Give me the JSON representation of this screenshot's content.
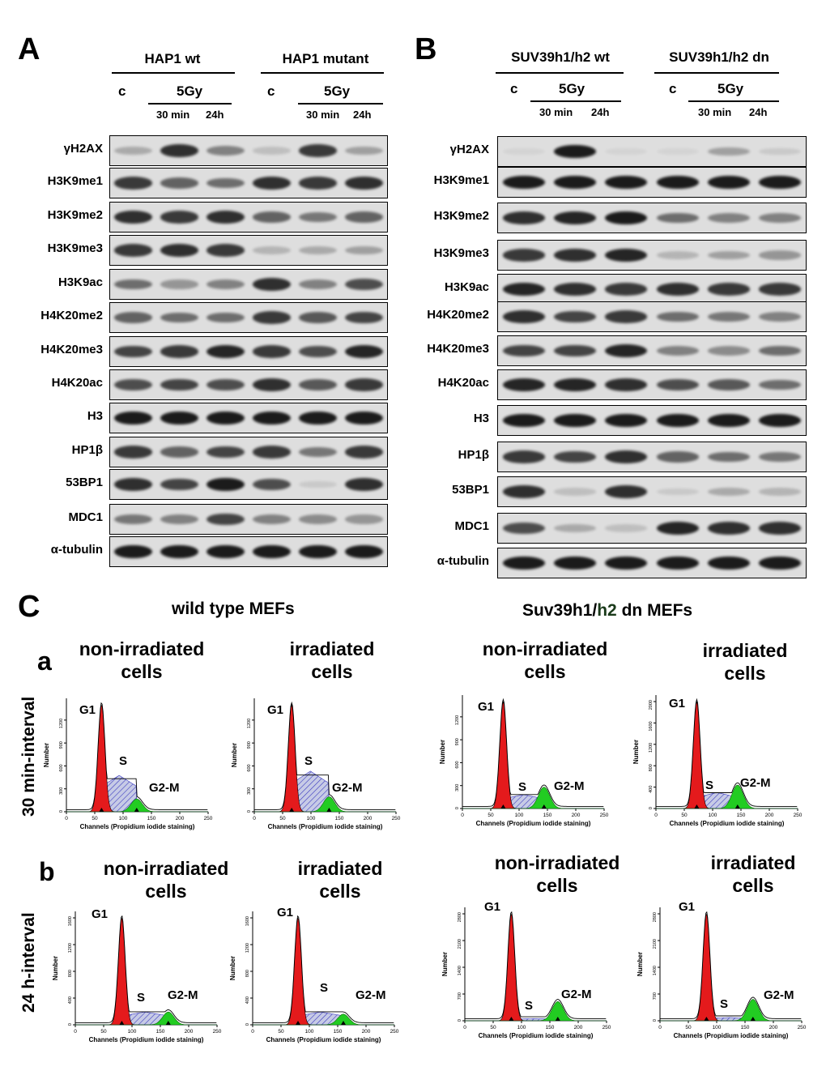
{
  "panelA": {
    "letter": "A",
    "group1": "HAP1 wt",
    "group2": "HAP1 mutant",
    "control": "c",
    "dose": "5Gy",
    "t1": "30 min",
    "t2": "24h",
    "rows": [
      "γH2AX",
      "H3K9me1",
      "H3K9me2",
      "H3K9me3",
      "H3K9ac",
      "H4K20me2",
      "H4K20me3",
      "H4K20ac",
      "H3",
      "HP1β",
      "53BP1",
      "MDC1",
      "α-tubulin"
    ],
    "intensities": [
      [
        0.25,
        0.85,
        0.45,
        0.15,
        0.8,
        0.3
      ],
      [
        0.8,
        0.6,
        0.55,
        0.85,
        0.8,
        0.85
      ],
      [
        0.85,
        0.8,
        0.85,
        0.6,
        0.5,
        0.6
      ],
      [
        0.8,
        0.85,
        0.8,
        0.2,
        0.25,
        0.3
      ],
      [
        0.55,
        0.35,
        0.45,
        0.85,
        0.45,
        0.7
      ],
      [
        0.6,
        0.55,
        0.55,
        0.8,
        0.65,
        0.75
      ],
      [
        0.75,
        0.8,
        0.9,
        0.8,
        0.7,
        0.9
      ],
      [
        0.7,
        0.75,
        0.7,
        0.85,
        0.65,
        0.8
      ],
      [
        0.95,
        0.95,
        0.95,
        0.95,
        0.95,
        0.95
      ],
      [
        0.8,
        0.6,
        0.75,
        0.8,
        0.5,
        0.8
      ],
      [
        0.85,
        0.75,
        0.95,
        0.7,
        0.1,
        0.85
      ],
      [
        0.5,
        0.45,
        0.75,
        0.45,
        0.4,
        0.35
      ],
      [
        0.95,
        0.95,
        0.95,
        0.95,
        0.95,
        0.95
      ]
    ]
  },
  "panelB": {
    "letter": "B",
    "group1": "SUV39h1/h2 wt",
    "group2": "SUV39h1/h2 dn",
    "control": "c",
    "dose": "5Gy",
    "t1": "30 min",
    "t2": "24h",
    "rows": [
      "γH2AX",
      "H3K9me1",
      "H3K9me2",
      "H3K9me3",
      "H3K9ac",
      "H4K20me2",
      "H4K20me3",
      "H4K20ac",
      "H3",
      "HP1β",
      "53BP1",
      "MDC1",
      "α-tubulin"
    ],
    "intensities": [
      [
        0.05,
        0.95,
        0.05,
        0.03,
        0.3,
        0.1
      ],
      [
        0.95,
        0.95,
        0.95,
        0.95,
        0.95,
        0.95
      ],
      [
        0.85,
        0.9,
        0.95,
        0.55,
        0.45,
        0.45
      ],
      [
        0.8,
        0.85,
        0.9,
        0.2,
        0.3,
        0.35
      ],
      [
        0.9,
        0.85,
        0.8,
        0.85,
        0.8,
        0.8
      ],
      [
        0.85,
        0.75,
        0.8,
        0.55,
        0.5,
        0.45
      ],
      [
        0.75,
        0.75,
        0.9,
        0.45,
        0.4,
        0.55
      ],
      [
        0.9,
        0.9,
        0.85,
        0.7,
        0.65,
        0.55
      ],
      [
        0.95,
        0.95,
        0.95,
        0.95,
        0.95,
        0.95
      ],
      [
        0.8,
        0.75,
        0.85,
        0.6,
        0.55,
        0.5
      ],
      [
        0.85,
        0.15,
        0.85,
        0.1,
        0.25,
        0.2
      ],
      [
        0.7,
        0.25,
        0.15,
        0.9,
        0.85,
        0.85
      ],
      [
        0.95,
        0.95,
        0.95,
        0.95,
        0.95,
        0.95
      ]
    ]
  },
  "panelC": {
    "letter": "C",
    "title_left": "wild type MEFs",
    "title_right_a": "Suv39h1",
    "title_right_sep": "/",
    "title_right_b": "h2",
    "title_right_c": " dn MEFs",
    "row_a_letter": "a",
    "row_b_letter": "b",
    "row_a_label": "30 min-interval",
    "row_b_label": "24 h-interval",
    "non_irr_1": "non-irradiated",
    "non_irr_2": "cells",
    "irr_1": "irradiated",
    "irr_2": "cells",
    "phase_g1": "G1",
    "phase_s": "S",
    "phase_g2m": "G2-M",
    "y_label": "Number",
    "x_label": "Channels (Propidium iodide staining)",
    "x_ticks": [
      "0",
      "50",
      "100",
      "150",
      "200",
      "250"
    ]
  },
  "colors": {
    "g1": "#e41a1c",
    "s_fill": "#c7cbe6",
    "s_hatch": "#3a3ac0",
    "g2m": "#22cc22",
    "band": "#111111",
    "blot_bg": "#dedede"
  },
  "chart_data": [
    {
      "type": "area",
      "panel": "C.a wild type non-irradiated",
      "g1_peak": 62,
      "s_level": 0.34,
      "g2m_peak": 0.12,
      "ylim": [
        0,
        1400
      ]
    },
    {
      "type": "area",
      "panel": "C.a wild type irradiated",
      "g1_peak": 66,
      "s_level": 0.38,
      "g2m_peak": 0.14,
      "ylim": [
        0,
        1400
      ]
    },
    {
      "type": "area",
      "panel": "C.a Suv39h1/h2 dn non-irradiated",
      "g1_peak": 72,
      "s_level": 0.13,
      "g2m_peak": 0.2,
      "ylim": [
        0,
        1400
      ]
    },
    {
      "type": "area",
      "panel": "C.a Suv39h1/h2 dn irradiated",
      "g1_peak": 72,
      "s_level": 0.15,
      "g2m_peak": 0.22,
      "ylim": [
        0,
        2000
      ]
    },
    {
      "type": "area",
      "panel": "C.b wild type non-irradiated",
      "g1_peak": 82,
      "s_level": 0.12,
      "g2m_peak": 0.12,
      "ylim": [
        0,
        1600
      ]
    },
    {
      "type": "area",
      "panel": "C.b wild type irradiated",
      "g1_peak": 80,
      "s_level": 0.12,
      "g2m_peak": 0.1,
      "ylim": [
        0,
        1600
      ]
    },
    {
      "type": "area",
      "panel": "C.b Suv39h1/h2 dn non-irradiated",
      "g1_peak": 82,
      "s_level": 0.02,
      "g2m_peak": 0.18,
      "ylim": [
        0,
        2800
      ]
    },
    {
      "type": "area",
      "panel": "C.b Suv39h1/h2 dn irradiated",
      "g1_peak": 82,
      "s_level": 0.03,
      "g2m_peak": 0.2,
      "ylim": [
        0,
        2800
      ]
    }
  ]
}
